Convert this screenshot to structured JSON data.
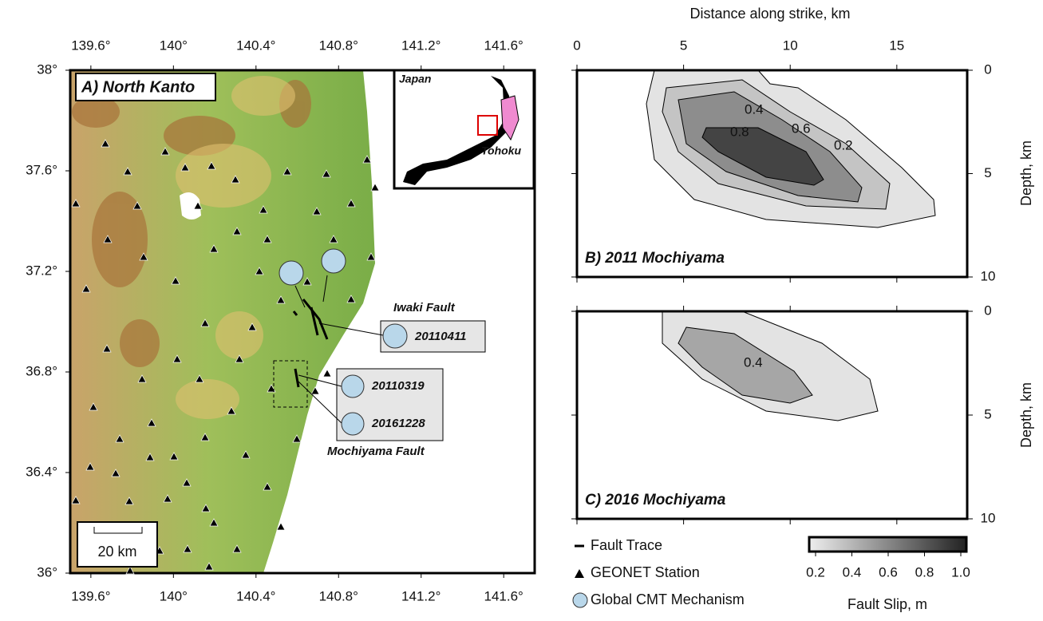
{
  "map": {
    "title": "A) North Kanto",
    "lon_ticks": [
      {
        "value": 139.6,
        "label": "139.6°"
      },
      {
        "value": 140,
        "label": "140°"
      },
      {
        "value": 140.4,
        "label": "140.4°"
      },
      {
        "value": 140.8,
        "label": "140.8°"
      },
      {
        "value": 141.2,
        "label": "141.2°"
      },
      {
        "value": 141.6,
        "label": "141.6°"
      }
    ],
    "lat_ticks": [
      {
        "value": 36,
        "label": "36°"
      },
      {
        "value": 36.4,
        "label": "36.4°"
      },
      {
        "value": 36.8,
        "label": "36.8°"
      },
      {
        "value": 37.2,
        "label": "37.2°"
      },
      {
        "value": 37.6,
        "label": "37.6°"
      },
      {
        "value": 38,
        "label": "38°"
      }
    ],
    "lonlim": [
      139.5,
      141.75
    ],
    "latlim": [
      36,
      38
    ],
    "inset_labels": [
      "Japan",
      "Tohoku"
    ],
    "fault_labels": [
      "Iwaki Fault",
      "Mochiyama Fault"
    ],
    "events": [
      "20110411",
      "20110319",
      "20161228"
    ],
    "scale_bar": "20 km"
  },
  "slip": {
    "xlabel": "Distance along strike, km",
    "ylabel": "Depth, km",
    "xlim": [
      0,
      18.3
    ],
    "ylim": [
      0,
      10
    ],
    "xticks": [
      0,
      5,
      10,
      15
    ],
    "yticks": [
      0,
      5,
      10
    ],
    "panels": [
      {
        "title": "B) 2011 Mochiyama",
        "contour_labels": [
          "0.4",
          "0.8",
          "0.6",
          "0.2"
        ]
      },
      {
        "title": "C) 2016 Mochiyama",
        "contour_labels": [
          "0.4"
        ]
      }
    ]
  },
  "legend": {
    "items": [
      "Fault Trace",
      "GEONET Station",
      "Global CMT Mechanism"
    ]
  },
  "colorbar": {
    "label": "Fault Slip, m",
    "ticks": [
      0.2,
      0.4,
      0.6,
      0.8,
      {
        "value": 1,
        "label": "1.0"
      }
    ]
  }
}
